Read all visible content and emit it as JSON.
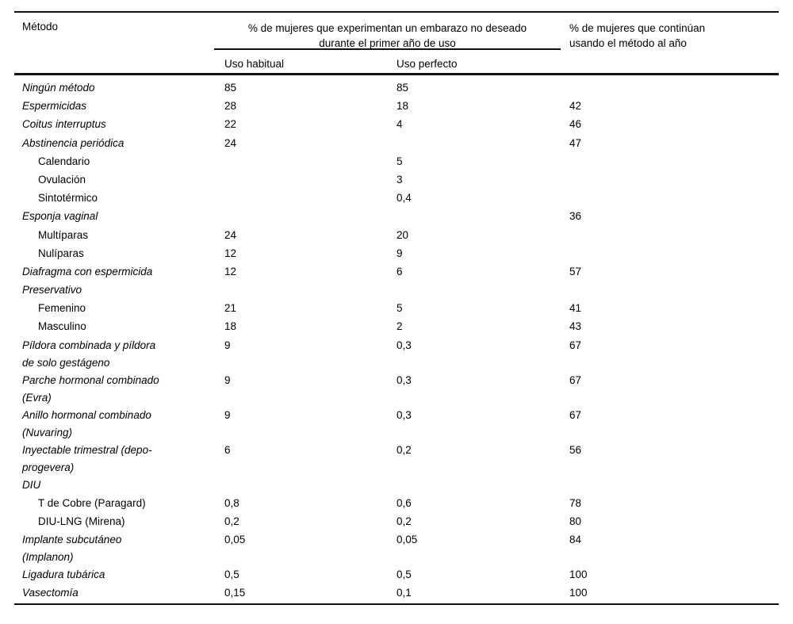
{
  "table": {
    "header": {
      "method": "Método",
      "pregnancy_group": "% de mujeres que experimentan un embarazo no deseado\ndurante el primer año de uso",
      "sub_typical": "Uso habitual",
      "sub_perfect": "Uso perfecto",
      "continuation": "% de mujeres que continúan\nusando el método al año"
    },
    "rows": [
      {
        "label": "Ningún método",
        "indent": 0,
        "italic": true,
        "habitual": "85",
        "perfecto": "85",
        "continua": ""
      },
      {
        "label": "Espermicidas",
        "indent": 0,
        "italic": true,
        "habitual": "28",
        "perfecto": "18",
        "continua": "42"
      },
      {
        "label": "Coitus interruptus",
        "indent": 0,
        "italic": true,
        "habitual": "22",
        "perfecto": "4",
        "continua": "46"
      },
      {
        "label": "Abstinencia periódica",
        "indent": 0,
        "italic": true,
        "habitual": "24",
        "perfecto": "",
        "continua": "47"
      },
      {
        "label": "Calendario",
        "indent": 1,
        "italic": false,
        "habitual": "",
        "perfecto": "5",
        "continua": ""
      },
      {
        "label": "Ovulación",
        "indent": 1,
        "italic": false,
        "habitual": "",
        "perfecto": "3",
        "continua": ""
      },
      {
        "label": "Sintotérmico",
        "indent": 1,
        "italic": false,
        "habitual": "",
        "perfecto": "0,4",
        "continua": ""
      },
      {
        "label": "Esponja vaginal",
        "indent": 0,
        "italic": true,
        "habitual": "",
        "perfecto": "",
        "continua": "36"
      },
      {
        "label": "Multíparas",
        "indent": 1,
        "italic": false,
        "habitual": "24",
        "perfecto": "20",
        "continua": ""
      },
      {
        "label": "Nulíparas",
        "indent": 1,
        "italic": false,
        "habitual": "12",
        "perfecto": "9",
        "continua": ""
      },
      {
        "label": "Diafragma con espermicida",
        "indent": 0,
        "italic": true,
        "habitual": "12",
        "perfecto": "6",
        "continua": "57"
      },
      {
        "label": "Preservativo",
        "indent": 0,
        "italic": true,
        "habitual": "",
        "perfecto": "",
        "continua": ""
      },
      {
        "label": "Femenino",
        "indent": 1,
        "italic": false,
        "habitual": "21",
        "perfecto": "5",
        "continua": "41"
      },
      {
        "label": "Masculino",
        "indent": 1,
        "italic": false,
        "habitual": "18",
        "perfecto": "2",
        "continua": "43"
      },
      {
        "label": "Píldora combinada y píldora\nde solo gestágeno",
        "indent": 0,
        "italic": true,
        "habitual": "9",
        "perfecto": "0,3",
        "continua": "67"
      },
      {
        "label": "Parche hormonal combinado\n(Evra)",
        "indent": 0,
        "italic": true,
        "habitual": "9",
        "perfecto": "0,3",
        "continua": "67"
      },
      {
        "label": "Anillo hormonal combinado\n(Nuvaring)",
        "indent": 0,
        "italic": true,
        "habitual": "9",
        "perfecto": "0,3",
        "continua": "67"
      },
      {
        "label": "Inyectable trimestral (depo-\nprogevera)",
        "indent": 0,
        "italic": true,
        "habitual": "6",
        "perfecto": "0,2",
        "continua": "56"
      },
      {
        "label": "DIU",
        "indent": 0,
        "italic": true,
        "habitual": "",
        "perfecto": "",
        "continua": ""
      },
      {
        "label": "T de Cobre (Paragard)",
        "indent": 1,
        "italic": false,
        "habitual": "0,8",
        "perfecto": "0,6",
        "continua": "78"
      },
      {
        "label": "DIU-LNG (Mirena)",
        "indent": 1,
        "italic": false,
        "habitual": "0,2",
        "perfecto": "0,2",
        "continua": "80"
      },
      {
        "label": "Implante subcutáneo\n(Implanon)",
        "indent": 0,
        "italic": true,
        "habitual": "0,05",
        "perfecto": "0,05",
        "continua": "84"
      },
      {
        "label": "Ligadura tubárica",
        "indent": 0,
        "italic": true,
        "habitual": "0,5",
        "perfecto": "0,5",
        "continua": "100"
      },
      {
        "label": "Vasectomía",
        "indent": 0,
        "italic": true,
        "habitual": "0,15",
        "perfecto": "0,1",
        "continua": "100"
      }
    ]
  },
  "colors": {
    "rule": "#111111",
    "text": "#000000",
    "background": "#ffffff"
  }
}
